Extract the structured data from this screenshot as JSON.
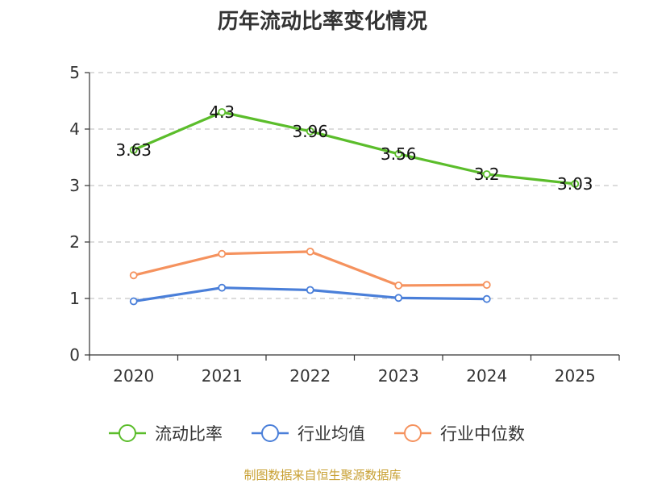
{
  "chart_data": {
    "type": "line",
    "title": "历年流动比率变化情况",
    "categories": [
      "2020",
      "2021",
      "2022",
      "2023",
      "2024",
      "2025"
    ],
    "ylim": [
      0,
      5
    ],
    "yticks": [
      0,
      1,
      2,
      3,
      4,
      5
    ],
    "grid": true,
    "legend_position": "bottom",
    "series": [
      {
        "name": "流动比率",
        "color": "#5bbd2b",
        "values": [
          3.63,
          4.3,
          3.96,
          3.56,
          3.2,
          3.03
        ],
        "labels": [
          "3.63",
          "4.3",
          "3.96",
          "3.56",
          "3.2",
          "3.03"
        ]
      },
      {
        "name": "行业均值",
        "color": "#4a7fd9",
        "values": [
          0.95,
          1.19,
          1.15,
          1.01,
          0.99,
          null
        ]
      },
      {
        "name": "行业中位数",
        "color": "#f5925e",
        "values": [
          1.41,
          1.79,
          1.83,
          1.23,
          1.24,
          null
        ]
      }
    ]
  },
  "source_note": "制图数据来自恒生聚源数据库"
}
